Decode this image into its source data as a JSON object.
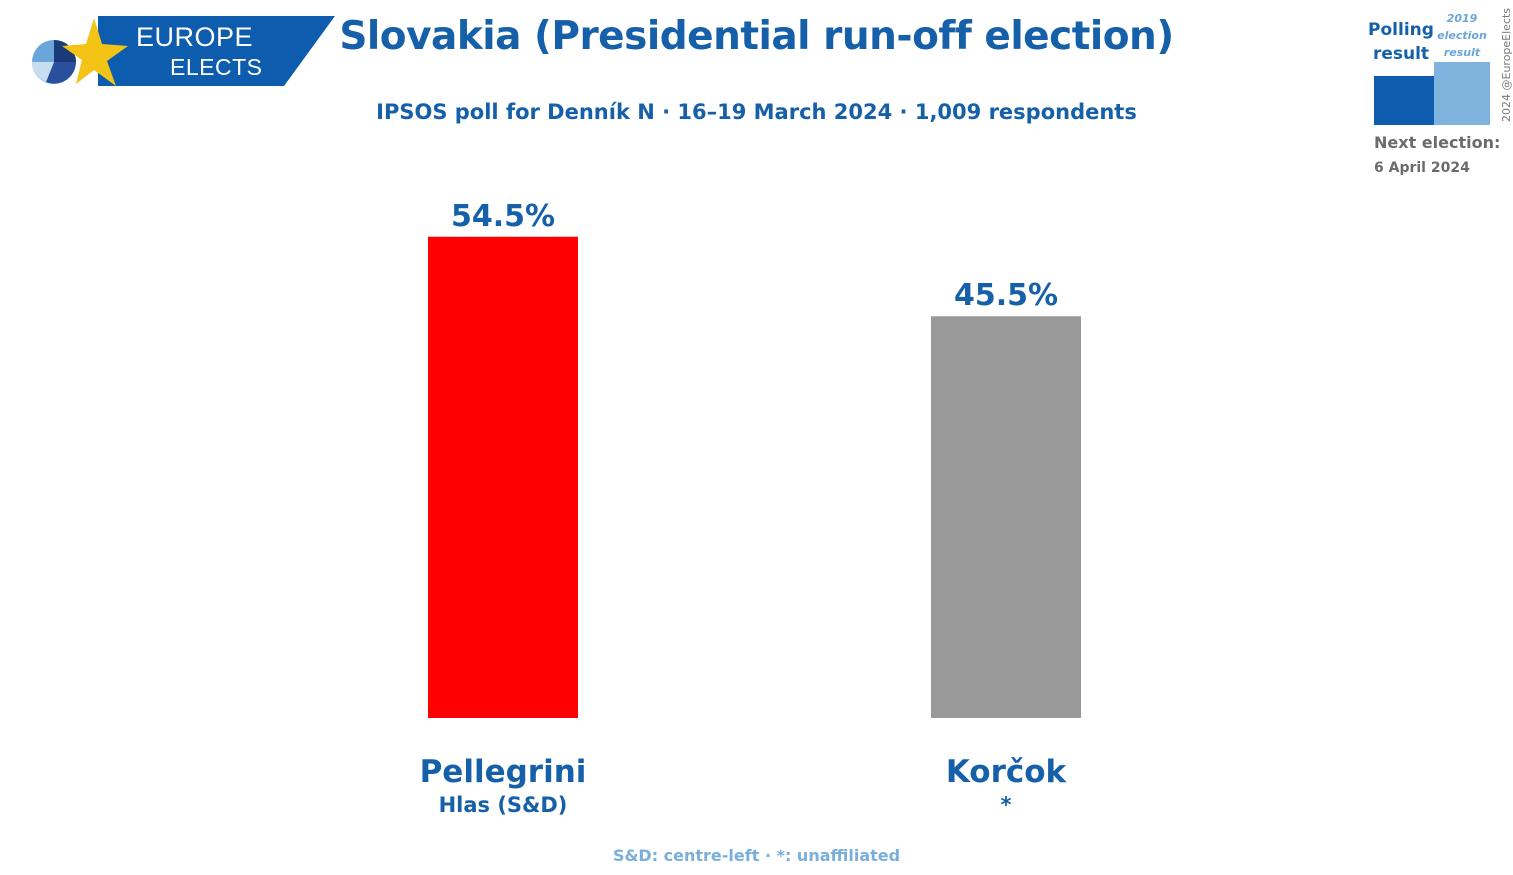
{
  "logo": {
    "line1": "EUROPE",
    "line2": "ELECTS"
  },
  "title": "Slovakia (Presidential run-off election)",
  "subtitle": "IPSOS poll for Denník N · 16–19 March 2024 · 1,009 respondents",
  "legend": {
    "polling_label": "Polling result",
    "previous_label": "2019 election result",
    "next_election_label": "Next election:",
    "next_election_date": "6 April 2024",
    "copyright": "2024 @EuropeElects"
  },
  "colors": {
    "accent": "#1560a8",
    "pellegrini": "#ff0000",
    "korcok": "#999999",
    "legend_poll": "#0d5cae",
    "legend_prev": "#7fb2dc",
    "footnote": "#7aaedb"
  },
  "chart_data": {
    "type": "bar",
    "categories": [
      "Pellegrini",
      "Korčok"
    ],
    "parties": [
      "Hlas (S&D)",
      "*"
    ],
    "values": [
      54.5,
      45.5
    ],
    "value_labels": [
      "54.5%",
      "45.5%"
    ],
    "colors": [
      "#ff0000",
      "#999999"
    ],
    "ylim": [
      0,
      60
    ],
    "grid": false,
    "title": "Slovakia (Presidential run-off election)",
    "xlabel": "",
    "ylabel": ""
  },
  "footnote": "S&D: centre-left · *: unaffiliated"
}
